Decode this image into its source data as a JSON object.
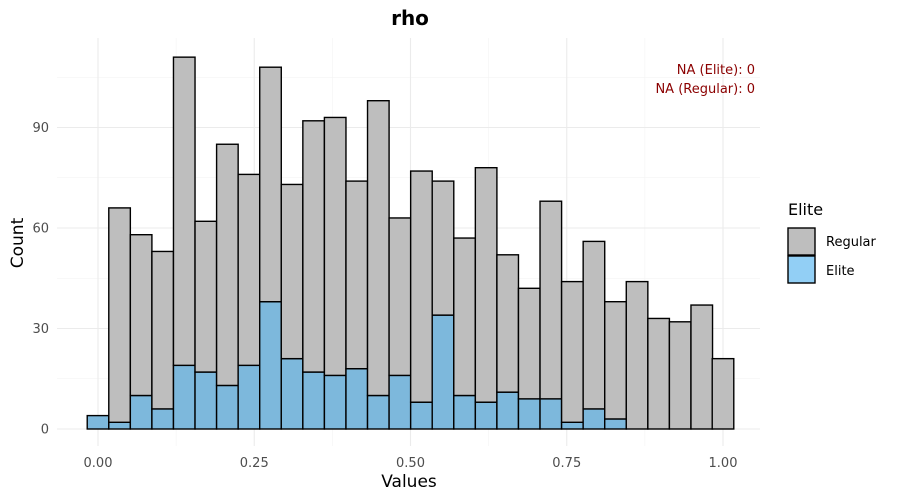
{
  "chart_data": {
    "type": "bar",
    "title": "rho",
    "xlabel": "Values",
    "ylabel": "Count",
    "xlim": [
      -0.05,
      1.05
    ],
    "ylim": [
      0,
      117
    ],
    "x_ticks": [
      {
        "value": 0.0,
        "label": "0.00"
      },
      {
        "value": 0.25,
        "label": "0.25"
      },
      {
        "value": 0.5,
        "label": "0.50"
      },
      {
        "value": 0.75,
        "label": "0.75"
      },
      {
        "value": 1.0,
        "label": "1.00"
      }
    ],
    "y_ticks": [
      {
        "value": 0,
        "label": "0"
      },
      {
        "value": 30,
        "label": "30"
      },
      {
        "value": 60,
        "label": "60"
      },
      {
        "value": 90,
        "label": "90"
      }
    ],
    "bin_width": 0.0345,
    "bin_centers": [
      0.0,
      0.0345,
      0.069,
      0.1035,
      0.138,
      0.1725,
      0.207,
      0.2415,
      0.276,
      0.3105,
      0.345,
      0.3795,
      0.414,
      0.4485,
      0.483,
      0.5175,
      0.552,
      0.5865,
      0.621,
      0.6555,
      0.69,
      0.7245,
      0.759,
      0.7935,
      0.828,
      0.8625,
      0.897,
      0.9315,
      0.966,
      1.0
    ],
    "stacked": true,
    "series": [
      {
        "name": "Elite",
        "color": "#7db8dc",
        "values": [
          4,
          2,
          10,
          6,
          19,
          17,
          13,
          19,
          38,
          21,
          17,
          16,
          18,
          10,
          16,
          8,
          34,
          10,
          8,
          11,
          9,
          9,
          2,
          6,
          3,
          0,
          0,
          0,
          0,
          0
        ]
      },
      {
        "name": "Regular",
        "color": "#bebebe",
        "values": [
          0,
          64,
          48,
          47,
          92,
          45,
          72,
          57,
          70,
          52,
          75,
          77,
          56,
          88,
          47,
          69,
          40,
          47,
          70,
          41,
          33,
          59,
          42,
          50,
          35,
          44,
          33,
          32,
          37,
          21
        ]
      }
    ],
    "legend": {
      "title": "Elite",
      "position": "right",
      "entries": [
        {
          "label": "Regular",
          "color": "#bebebe"
        },
        {
          "label": "Elite",
          "color": "#92cff5"
        }
      ]
    },
    "annotations": [
      {
        "text": "NA (Elite): 0",
        "color": "#8b0000"
      },
      {
        "text": "NA (Regular): 0",
        "color": "#8b0000"
      }
    ],
    "grid": true
  }
}
